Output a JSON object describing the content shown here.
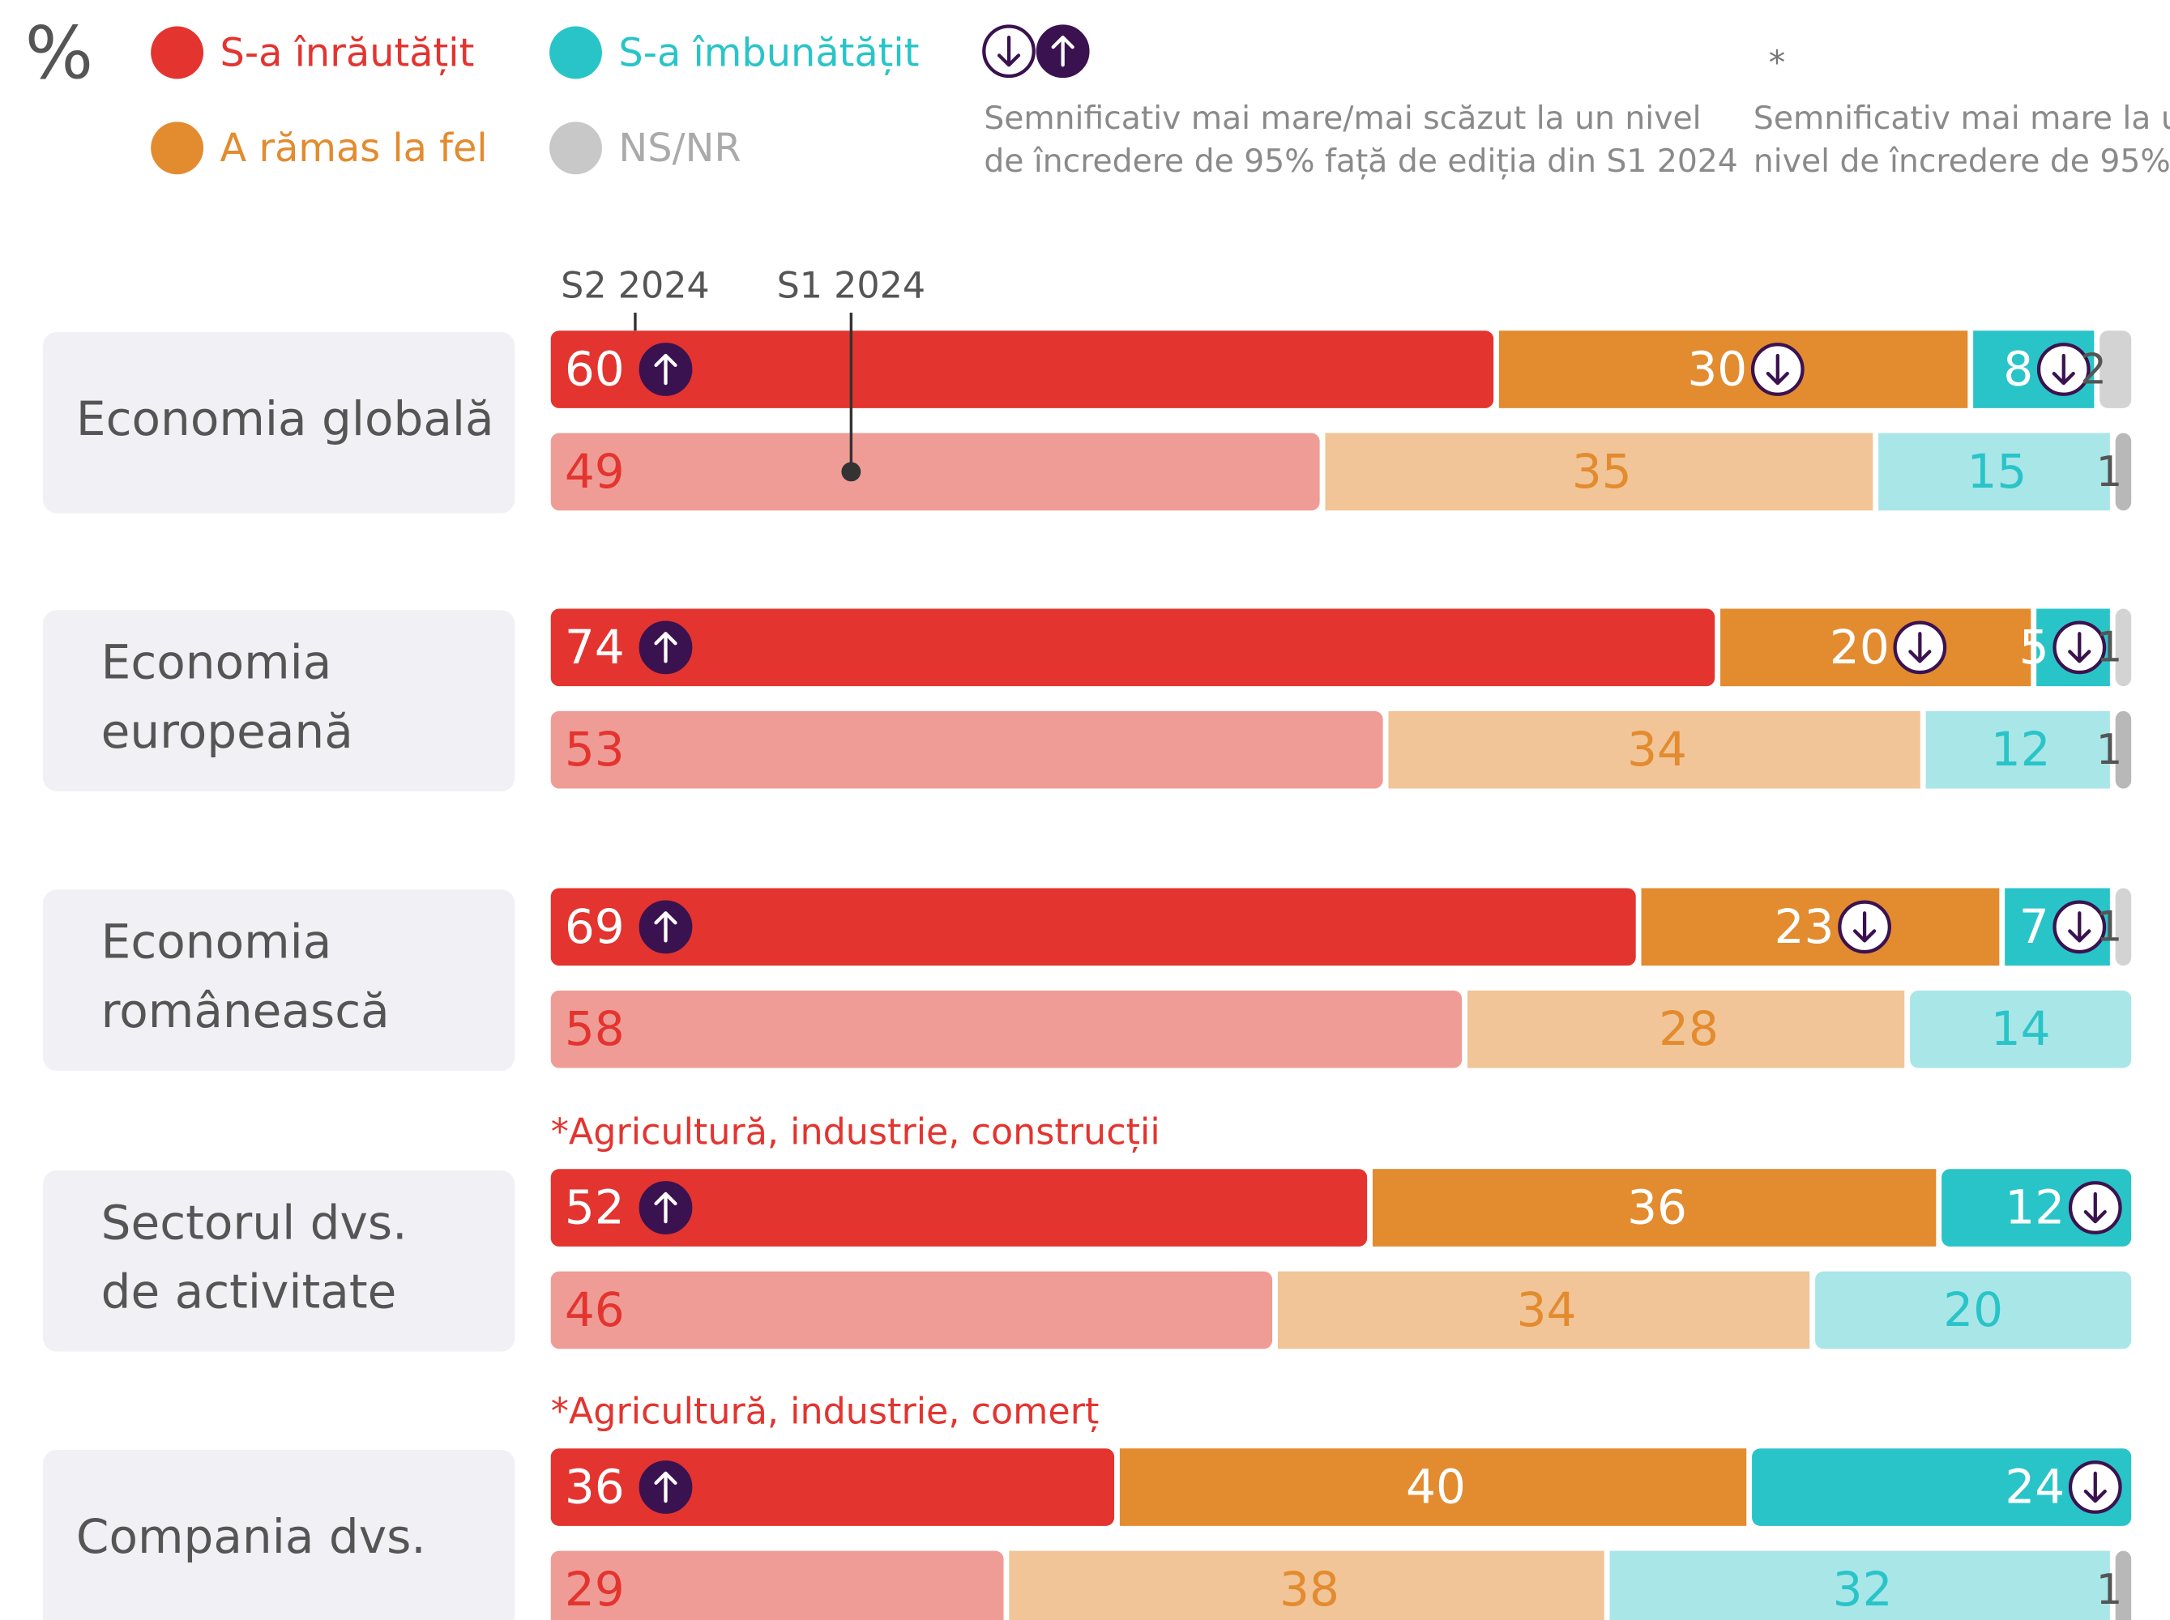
{
  "chart_data": {
    "type": "stacked_bar",
    "unit_label": "%",
    "periods": [
      "S2 2024",
      "S1 2024"
    ],
    "categories": [
      [
        "Economia globală"
      ],
      [
        "Economia",
        "europeană"
      ],
      [
        "Economia",
        "românească"
      ],
      [
        "Sectorul dvs.",
        "de activitate"
      ],
      [
        "Compania dvs."
      ]
    ],
    "notes": [
      null,
      null,
      null,
      "*Agricultură, industrie, construcții",
      "*Agricultură, industrie, comerț"
    ],
    "significance_legend": [
      "Semnificativ mai mare/mai scăzut la un nivel",
      "de încredere de 95% față de ediția din S1 2024"
    ],
    "star_symbol": "*",
    "star_legend": [
      "Semnificativ mai mare la un",
      "nivel de încredere de 95%"
    ],
    "series": [
      {
        "name": "S-a înrăutățit",
        "color": "#e3342f",
        "light_color": "#f09c96",
        "label_color": "#e3342f",
        "values": [
          [
            60,
            49
          ],
          [
            74,
            53
          ],
          [
            69,
            58
          ],
          [
            52,
            46
          ],
          [
            36,
            29
          ]
        ],
        "markers": [
          "up",
          "up",
          "up",
          "up",
          "up"
        ]
      },
      {
        "name": "A rămas la fel",
        "color": "#e38b2f",
        "light_color": "#f1c597",
        "label_color": "#e38b2f",
        "values": [
          [
            30,
            35
          ],
          [
            20,
            34
          ],
          [
            23,
            28
          ],
          [
            36,
            34
          ],
          [
            40,
            38
          ]
        ],
        "markers": [
          "down",
          "down",
          "down",
          null,
          null
        ]
      },
      {
        "name": "S-a îmbunătățit",
        "color": "#29c4c8",
        "light_color": "#a9e6e8",
        "label_color": "#29c4c8",
        "values": [
          [
            8,
            15
          ],
          [
            5,
            12
          ],
          [
            7,
            14
          ],
          [
            12,
            20
          ],
          [
            24,
            32
          ]
        ],
        "markers": [
          "down",
          "down",
          "down",
          "down",
          "down"
        ]
      },
      {
        "name": "NS/NR",
        "color": "#d3d3d3",
        "light_color": "#b8b8b8",
        "label_color": "#555555",
        "values": [
          [
            2,
            1
          ],
          [
            1,
            1
          ],
          [
            1,
            0
          ],
          [
            0,
            0
          ],
          [
            0,
            1
          ]
        ],
        "markers": [
          null,
          null,
          null,
          null,
          null
        ]
      }
    ],
    "xlim": [
      0,
      100
    ]
  }
}
